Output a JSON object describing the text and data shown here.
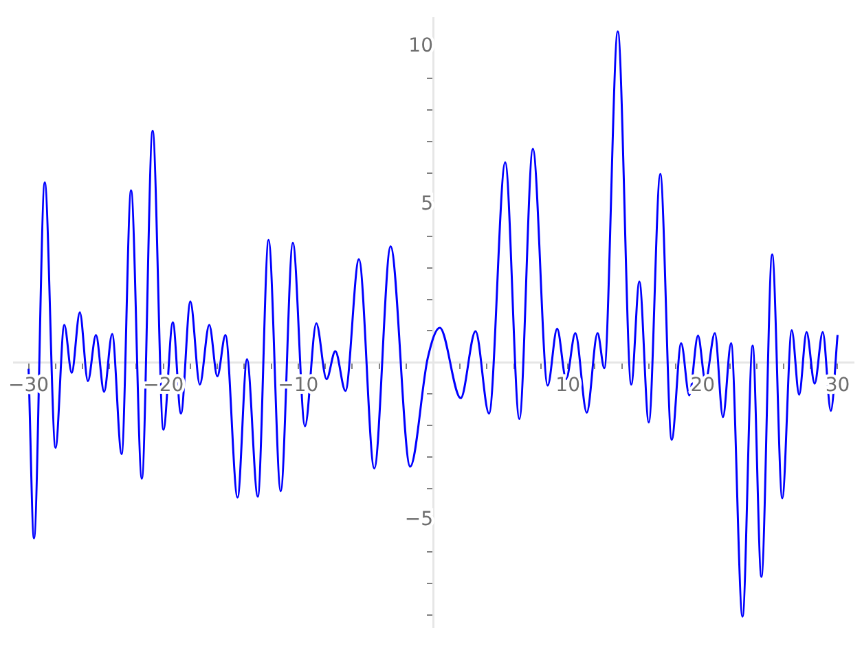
{
  "chart_data": {
    "type": "line",
    "x": [
      -30,
      -29.6,
      -28.8,
      -28.0,
      -27.35,
      -26.8,
      -26.2,
      -25.6,
      -25.0,
      -24.4,
      -23.8,
      -23.1,
      -22.4,
      -21.6,
      -20.8,
      -20.0,
      -19.3,
      -18.7,
      -18.0,
      -17.3,
      -16.6,
      -16.0,
      -15.4,
      -14.5,
      -13.8,
      -13.0,
      -12.2,
      -11.3,
      -10.4,
      -9.5,
      -8.66,
      -7.9,
      -7.25,
      -6.5,
      -5.5,
      -4.36,
      -3.15,
      -1.7,
      -0.4,
      0.5,
      2.05,
      3.15,
      4.15,
      5.35,
      6.4,
      7.4,
      8.5,
      9.2,
      9.87,
      10.55,
      11.4,
      12.2,
      12.7,
      13.7,
      14.7,
      15.3,
      16.0,
      16.85,
      17.7,
      18.4,
      19.0,
      19.65,
      20.2,
      20.9,
      21.5,
      22.1,
      22.95,
      23.7,
      24.35,
      25.15,
      25.9,
      26.6,
      27.15,
      27.7,
      28.3,
      28.9,
      29.5,
      30.0
    ],
    "series": [
      {
        "color": "#0000ff",
        "values": [
          -0.2,
          -5.57,
          5.7,
          -2.7,
          1.19,
          -0.33,
          1.59,
          -0.59,
          0.87,
          -0.93,
          0.9,
          -2.9,
          5.45,
          -3.68,
          7.34,
          -2.13,
          1.27,
          -1.62,
          1.93,
          -0.7,
          1.19,
          -0.44,
          0.87,
          -4.28,
          0.1,
          -4.25,
          3.88,
          -4.08,
          3.79,
          -2.02,
          1.24,
          -0.53,
          0.36,
          -0.9,
          3.27,
          -3.36,
          3.68,
          -3.3,
          0.13,
          1.1,
          -1.13,
          0.99,
          -1.62,
          6.34,
          -1.79,
          6.77,
          -0.73,
          1.07,
          -0.53,
          0.93,
          -1.59,
          0.93,
          -0.18,
          10.49,
          -0.7,
          2.56,
          -1.9,
          5.97,
          -2.45,
          0.61,
          -1.04,
          0.85,
          -0.59,
          0.93,
          -1.73,
          0.61,
          -8.05,
          0.53,
          -6.79,
          3.42,
          -4.3,
          1.02,
          -1.02,
          0.96,
          -0.67,
          0.96,
          -1.53,
          0.87
        ]
      }
    ],
    "xlim": [
      -31.1,
      31.2
    ],
    "ylim": [
      -8.4,
      10.9
    ],
    "xticks": [
      {
        "value": -30,
        "label": "−30"
      },
      {
        "value": -28,
        "label": null
      },
      {
        "value": -26,
        "label": null
      },
      {
        "value": -24,
        "label": null
      },
      {
        "value": -22,
        "label": null
      },
      {
        "value": -20,
        "label": "−20"
      },
      {
        "value": -18,
        "label": null
      },
      {
        "value": -16,
        "label": null
      },
      {
        "value": -14,
        "label": null
      },
      {
        "value": -12,
        "label": null
      },
      {
        "value": -10,
        "label": "−10"
      },
      {
        "value": -8,
        "label": null
      },
      {
        "value": -6,
        "label": null
      },
      {
        "value": -4,
        "label": null
      },
      {
        "value": -2,
        "label": null
      },
      {
        "value": 2,
        "label": null
      },
      {
        "value": 4,
        "label": null
      },
      {
        "value": 6,
        "label": null
      },
      {
        "value": 8,
        "label": null
      },
      10,
      {
        "value": 12,
        "label": null
      },
      {
        "value": 14,
        "label": null
      },
      {
        "value": 16,
        "label": null
      },
      {
        "value": 18,
        "label": null
      },
      20,
      {
        "value": 22,
        "label": null
      },
      {
        "value": 24,
        "label": null
      },
      {
        "value": 26,
        "label": null
      },
      {
        "value": 28,
        "label": null
      },
      30
    ],
    "yticks": [
      {
        "value": -8,
        "label": null
      },
      {
        "value": -7,
        "label": null
      },
      {
        "value": -6,
        "label": null
      },
      {
        "value": -5,
        "label": "−5"
      },
      {
        "value": -4,
        "label": null
      },
      {
        "value": -3,
        "label": null
      },
      {
        "value": -2,
        "label": null
      },
      {
        "value": -1,
        "label": null
      },
      {
        "value": 1,
        "label": null
      },
      {
        "value": 2,
        "label": null
      },
      {
        "value": 3,
        "label": null
      },
      {
        "value": 4,
        "label": null
      },
      5,
      {
        "value": 6,
        "label": null
      },
      {
        "value": 7,
        "label": null
      },
      {
        "value": 8,
        "label": null
      },
      {
        "value": 9,
        "label": null
      },
      10
    ],
    "grid": false,
    "legend": false,
    "marker": "none",
    "line_style": "solid"
  }
}
